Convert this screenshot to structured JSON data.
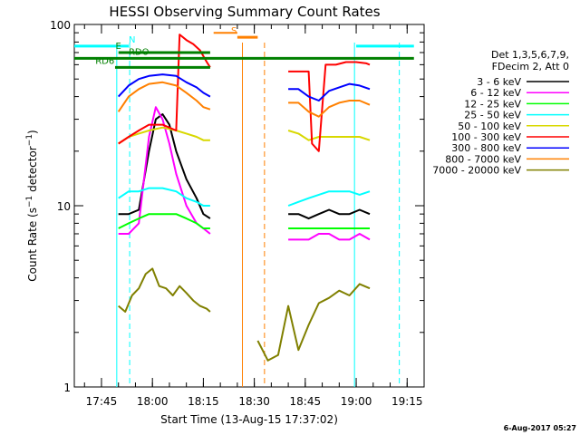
{
  "chart_data": {
    "type": "line",
    "title": "HESSI Observing Summary Count Rates",
    "xlabel": "Start Time (13-Aug-15 17:37:02)",
    "ylabel": "Count Rate (s⁻¹ detector⁻¹)",
    "ylabel_parts": {
      "a": "Count Rate (s",
      "e1": "−1",
      "b": " detector",
      "e2": "−1",
      "c": ")"
    },
    "yscale": "log",
    "ylim": [
      1,
      100
    ],
    "xlim_minutes": [
      0,
      103
    ],
    "x_ticks": [
      {
        "minute": 8,
        "label": "17:45"
      },
      {
        "minute": 23,
        "label": "18:00"
      },
      {
        "minute": 38,
        "label": "18:15"
      },
      {
        "minute": 53,
        "label": "18:30"
      },
      {
        "minute": 68,
        "label": "18:45"
      },
      {
        "minute": 83,
        "label": "19:00"
      },
      {
        "minute": 98,
        "label": "19:15"
      }
    ],
    "y_ticks": [
      {
        "value": 1,
        "label": "1"
      },
      {
        "value": 10,
        "label": "10"
      },
      {
        "value": 100,
        "label": "100"
      }
    ],
    "legend_header": [
      "Det 1,3,5,6,7,9,",
      "FDecim 2, Att 0"
    ],
    "legend_placement": "right",
    "series": [
      {
        "name": "3 - 6 keV",
        "color": "#000000",
        "segments": [
          [
            [
              13,
              9
            ],
            [
              16,
              9
            ],
            [
              19,
              9.5
            ],
            [
              22,
              20
            ],
            [
              24,
              30
            ],
            [
              26,
              32
            ],
            [
              28,
              28
            ],
            [
              30,
              20
            ],
            [
              33,
              14
            ],
            [
              36,
              11
            ],
            [
              38,
              9
            ],
            [
              40,
              8.5
            ]
          ],
          [
            [
              63,
              9
            ],
            [
              66,
              9
            ],
            [
              69,
              8.5
            ],
            [
              72,
              9
            ],
            [
              75,
              9.5
            ],
            [
              78,
              9
            ],
            [
              81,
              9
            ],
            [
              84,
              9.5
            ],
            [
              87,
              9
            ]
          ]
        ]
      },
      {
        "name": "6 - 12 keV",
        "color": "#ff00ff",
        "segments": [
          [
            [
              13,
              7
            ],
            [
              16,
              7
            ],
            [
              19,
              8
            ],
            [
              22,
              24
            ],
            [
              24,
              35
            ],
            [
              26,
              30
            ],
            [
              28,
              22
            ],
            [
              30,
              15
            ],
            [
              33,
              10
            ],
            [
              36,
              8
            ],
            [
              38,
              7.5
            ],
            [
              40,
              7
            ]
          ],
          [
            [
              63,
              6.5
            ],
            [
              66,
              6.5
            ],
            [
              69,
              6.5
            ],
            [
              72,
              7
            ],
            [
              75,
              7
            ],
            [
              78,
              6.5
            ],
            [
              81,
              6.5
            ],
            [
              84,
              7
            ],
            [
              87,
              6.5
            ]
          ]
        ]
      },
      {
        "name": "12 - 25 keV",
        "color": "#00ff00",
        "segments": [
          [
            [
              13,
              7.5
            ],
            [
              16,
              8
            ],
            [
              19,
              8.5
            ],
            [
              22,
              9
            ],
            [
              26,
              9
            ],
            [
              30,
              9
            ],
            [
              33,
              8.5
            ],
            [
              36,
              8
            ],
            [
              38,
              7.5
            ],
            [
              40,
              7.5
            ]
          ],
          [
            [
              63,
              7.5
            ],
            [
              66,
              7.5
            ],
            [
              69,
              7.5
            ],
            [
              72,
              7.5
            ],
            [
              75,
              7.5
            ],
            [
              78,
              7.5
            ],
            [
              81,
              7.5
            ],
            [
              84,
              7.5
            ],
            [
              87,
              7.5
            ]
          ]
        ]
      },
      {
        "name": "25 - 50 keV",
        "color": "#00ffff",
        "segments": [
          [
            [
              13,
              11
            ],
            [
              16,
              12
            ],
            [
              19,
              12
            ],
            [
              22,
              12.5
            ],
            [
              26,
              12.5
            ],
            [
              30,
              12
            ],
            [
              33,
              11
            ],
            [
              36,
              10.5
            ],
            [
              38,
              10
            ],
            [
              40,
              10
            ]
          ],
          [
            [
              63,
              10
            ],
            [
              66,
              10.5
            ],
            [
              69,
              11
            ],
            [
              72,
              11.5
            ],
            [
              75,
              12
            ],
            [
              78,
              12
            ],
            [
              81,
              12
            ],
            [
              84,
              11.5
            ],
            [
              87,
              12
            ]
          ]
        ]
      },
      {
        "name": "50 - 100 keV",
        "color": "#d8d800",
        "segments": [
          [
            [
              13,
              22
            ],
            [
              16,
              24
            ],
            [
              19,
              25
            ],
            [
              22,
              26
            ],
            [
              26,
              27
            ],
            [
              30,
              26
            ],
            [
              33,
              25
            ],
            [
              36,
              24
            ],
            [
              38,
              23
            ],
            [
              40,
              23
            ]
          ],
          [
            [
              63,
              26
            ],
            [
              66,
              25
            ],
            [
              69,
              23
            ],
            [
              72,
              24
            ],
            [
              75,
              24
            ],
            [
              78,
              24
            ],
            [
              81,
              24
            ],
            [
              84,
              24
            ],
            [
              87,
              23
            ]
          ]
        ]
      },
      {
        "name": "100 - 300 keV",
        "color": "#ff0000",
        "segments": [
          [
            [
              13,
              22
            ],
            [
              16,
              24
            ],
            [
              19,
              26
            ],
            [
              22,
              28
            ],
            [
              26,
              28
            ],
            [
              30,
              26
            ],
            [
              31,
              88
            ],
            [
              33,
              82
            ],
            [
              35,
              78
            ],
            [
              37,
              72
            ],
            [
              39,
              62
            ],
            [
              40,
              58
            ]
          ],
          [
            [
              63,
              55
            ],
            [
              66,
              55
            ],
            [
              69,
              55
            ],
            [
              70,
              22
            ],
            [
              72,
              20
            ],
            [
              74,
              60
            ],
            [
              77,
              60
            ],
            [
              80,
              62
            ],
            [
              83,
              62
            ],
            [
              86,
              61
            ],
            [
              87,
              60
            ]
          ]
        ]
      },
      {
        "name": "300 - 800 keV",
        "color": "#0000ff",
        "segments": [
          [
            [
              13,
              40
            ],
            [
              16,
              46
            ],
            [
              19,
              50
            ],
            [
              22,
              52
            ],
            [
              26,
              53
            ],
            [
              30,
              52
            ],
            [
              33,
              48
            ],
            [
              36,
              45
            ],
            [
              38,
              42
            ],
            [
              40,
              40
            ]
          ],
          [
            [
              63,
              44
            ],
            [
              66,
              44
            ],
            [
              69,
              40
            ],
            [
              72,
              38
            ],
            [
              75,
              43
            ],
            [
              78,
              45
            ],
            [
              81,
              47
            ],
            [
              84,
              46
            ],
            [
              87,
              44
            ]
          ]
        ]
      },
      {
        "name": "800 - 7000 keV",
        "color": "#ff8000",
        "segments": [
          [
            [
              13,
              33
            ],
            [
              16,
              40
            ],
            [
              19,
              44
            ],
            [
              22,
              47
            ],
            [
              26,
              48
            ],
            [
              30,
              46
            ],
            [
              33,
              42
            ],
            [
              36,
              38
            ],
            [
              38,
              35
            ],
            [
              40,
              34
            ]
          ],
          [
            [
              63,
              37
            ],
            [
              66,
              37
            ],
            [
              69,
              33
            ],
            [
              72,
              31
            ],
            [
              75,
              35
            ],
            [
              78,
              37
            ],
            [
              81,
              38
            ],
            [
              84,
              38
            ],
            [
              87,
              36
            ]
          ],
          [
            [
              41,
              90
            ],
            [
              48,
              90
            ]
          ]
        ]
      },
      {
        "name": "7000 - 20000 keV",
        "color": "#808000",
        "segments": [
          [
            [
              13,
              2.8
            ],
            [
              15,
              2.6
            ],
            [
              17,
              3.2
            ],
            [
              19,
              3.5
            ],
            [
              21,
              4.2
            ],
            [
              23,
              4.5
            ],
            [
              25,
              3.6
            ],
            [
              27,
              3.5
            ],
            [
              29,
              3.2
            ],
            [
              31,
              3.6
            ],
            [
              33,
              3.3
            ],
            [
              35,
              3
            ],
            [
              37,
              2.8
            ],
            [
              39,
              2.7
            ],
            [
              40,
              2.6
            ]
          ],
          [
            [
              54,
              1.8
            ],
            [
              57,
              1.4
            ],
            [
              60,
              1.5
            ],
            [
              63,
              2.8
            ],
            [
              66,
              1.6
            ],
            [
              69,
              2.2
            ],
            [
              72,
              2.9
            ],
            [
              75,
              3.1
            ],
            [
              78,
              3.4
            ],
            [
              81,
              3.2
            ],
            [
              84,
              3.7
            ],
            [
              87,
              3.5
            ]
          ]
        ]
      }
    ],
    "flags": [
      {
        "label": "N",
        "color": "#00ffff",
        "y": 76,
        "start": 0,
        "end": 16,
        "label_at": 17
      },
      {
        "label": "",
        "color": "#00ffff",
        "y": 76,
        "start": 83,
        "end": 100
      },
      {
        "label": "S",
        "color": "#ff8000",
        "y": 85,
        "start": 48,
        "end": 54,
        "label_at": 47
      },
      {
        "label": "RDO",
        "color": "#008000",
        "y": 65,
        "start": 0,
        "end": 100,
        "label_at": 19
      },
      {
        "label": "RD6",
        "color": "#008000",
        "y": 58,
        "start": 12,
        "end": 40,
        "label_at": 9
      },
      {
        "label": "E",
        "color": "#008000",
        "y": 70,
        "start": 13,
        "end": 40,
        "label_at": 13
      }
    ],
    "vertical_lines": [
      {
        "minute": 12.5,
        "color": "#00ffff",
        "style": "solid"
      },
      {
        "minute": 16.3,
        "color": "#00ffff",
        "style": "dashed"
      },
      {
        "minute": 49.5,
        "color": "#ff8000",
        "style": "solid"
      },
      {
        "minute": 56,
        "color": "#ff8000",
        "style": "dashed"
      },
      {
        "minute": 82.5,
        "color": "#00ffff",
        "style": "solid"
      },
      {
        "minute": 95.7,
        "color": "#00ffff",
        "style": "dashed"
      }
    ]
  },
  "footer": {
    "timestamp": "6-Aug-2017 05:27"
  }
}
